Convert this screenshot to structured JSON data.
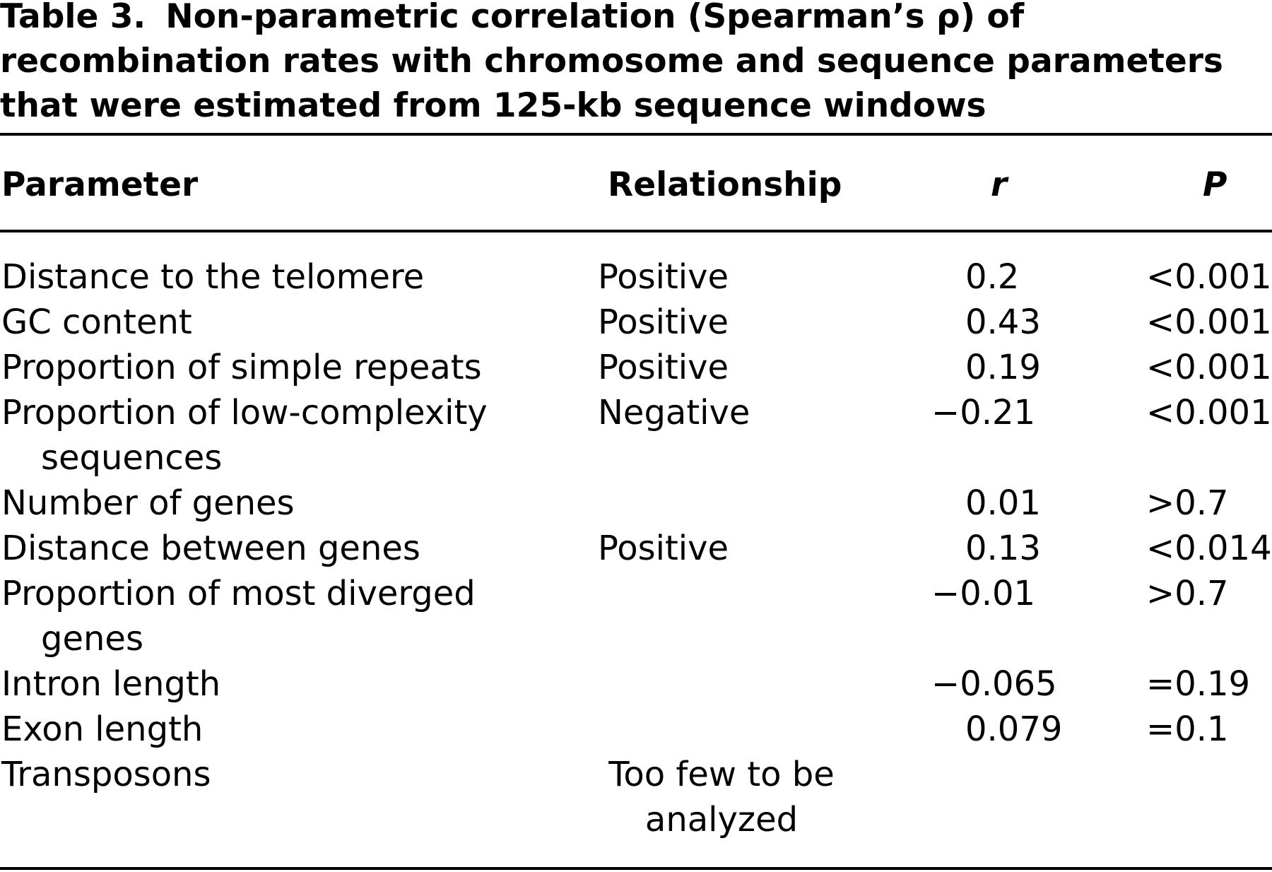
{
  "caption": {
    "label": "Table 3.",
    "line1": "Non-parametric correlation (Spearman’s ρ) of",
    "line2": "recombination rates with chromosome and sequence parameters",
    "line3": "that were estimated from 125-kb sequence windows"
  },
  "headers": {
    "parameter": "Parameter",
    "relationship": "Relationship",
    "r": "r",
    "p": "P"
  },
  "rows": [
    {
      "parameter": "Distance to the telomere",
      "parameter_cont": "",
      "relationship": "Positive",
      "r": "0.2",
      "p": "<0.001"
    },
    {
      "parameter": "GC content",
      "parameter_cont": "",
      "relationship": "Positive",
      "r": "0.43",
      "p": "<0.001"
    },
    {
      "parameter": "Proportion of simple repeats",
      "parameter_cont": "",
      "relationship": "Positive",
      "r": "0.19",
      "p": "<0.001"
    },
    {
      "parameter": "Proportion of low-complexity",
      "parameter_cont": "sequences",
      "relationship": "Negative",
      "r": "−0.21",
      "p": "<0.001"
    },
    {
      "parameter": "Number of genes",
      "parameter_cont": "",
      "relationship": "",
      "r": "0.01",
      "p": ">0.7"
    },
    {
      "parameter": "Distance between genes",
      "parameter_cont": "",
      "relationship": "Positive",
      "r": "0.13",
      "p": "<0.014"
    },
    {
      "parameter": "Proportion of most diverged",
      "parameter_cont": "genes",
      "relationship": "",
      "r": "−0.01",
      "p": ">0.7"
    },
    {
      "parameter": "Intron length",
      "parameter_cont": "",
      "relationship": "",
      "r": "−0.065",
      "p": "=0.19"
    },
    {
      "parameter": "Exon length",
      "parameter_cont": "",
      "relationship": "",
      "r": "0.079",
      "p": "=0.1"
    },
    {
      "parameter": "Transposons",
      "parameter_cont": "",
      "relationship": "Too few to be analyzed",
      "r": "",
      "p": ""
    }
  ]
}
